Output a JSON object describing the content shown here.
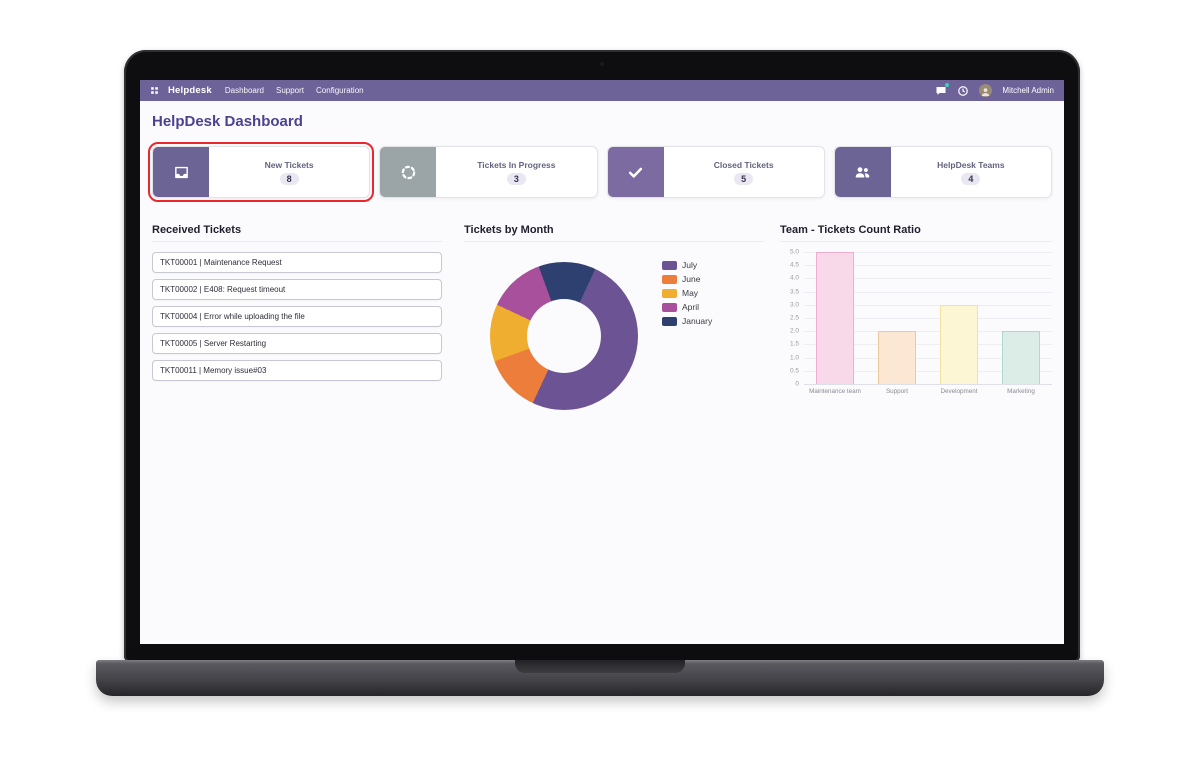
{
  "navbar": {
    "brand": "Helpdesk",
    "menu": [
      "Dashboard",
      "Support",
      "Configuration"
    ],
    "user_name": "Mitchell Admin",
    "color": "#6e6399",
    "icons": [
      "apps-grid-icon",
      "messages-icon",
      "activities-icon",
      "user-avatar"
    ]
  },
  "page": {
    "title": "HelpDesk Dashboard"
  },
  "ui_colors": {
    "selection": "#e8282d",
    "title_accent": "#4c4390",
    "page_background": "#fbfbfd"
  },
  "kpi_cards": [
    {
      "label": "New Tickets",
      "value": "8",
      "icon": "inbox-icon",
      "icon_bg": "#6c6494",
      "highlighted": true
    },
    {
      "label": "Tickets In Progress",
      "value": "3",
      "icon": "spinner-icon",
      "icon_bg": "#9ba4a6",
      "highlighted": false
    },
    {
      "label": "Closed Tickets",
      "value": "5",
      "icon": "check-icon",
      "icon_bg": "#7c6ba0",
      "highlighted": false
    },
    {
      "label": "HelpDesk Teams",
      "value": "4",
      "icon": "team-icon",
      "icon_bg": "#6c6494",
      "highlighted": false
    }
  ],
  "received_tickets": {
    "title": "Received Tickets",
    "items": [
      "TKT00001 | Maintenance Request",
      "TKT00002 | E408: Request timeout",
      "TKT00004 | Error while uploading the file",
      "TKT00005 | Server Restarting",
      "TKT00011 | Memory issue#03"
    ]
  },
  "chart_data": [
    {
      "type": "pie",
      "donut": true,
      "title": "Tickets by Month",
      "labels": [
        "July",
        "June",
        "May",
        "April",
        "January"
      ],
      "values": [
        4,
        1,
        1,
        1,
        1
      ],
      "colors": [
        "#6b5394",
        "#ed7d3a",
        "#efae2f",
        "#a8509c",
        "#2d4070"
      ],
      "legend_position": "right",
      "start_angle_deg": 25
    },
    {
      "type": "bar",
      "title": "Team - Tickets Count Ratio",
      "categories": [
        "Maintenance team",
        "Support",
        "Development",
        "Marketing"
      ],
      "values": [
        5,
        2,
        3,
        2
      ],
      "bar_fill": [
        "#f8d9e9",
        "#fbe7d4",
        "#fcf6d5",
        "#dcece7"
      ],
      "bar_border": [
        "#eeaed2",
        "#f2c79a",
        "#efe3a0",
        "#afd8cd"
      ],
      "ylim": [
        0,
        5
      ],
      "yticks": [
        0,
        0.5,
        1,
        1.5,
        2,
        2.5,
        3,
        3.5,
        4,
        4.5,
        5
      ],
      "grid": true,
      "xlabel": "",
      "ylabel": ""
    }
  ]
}
